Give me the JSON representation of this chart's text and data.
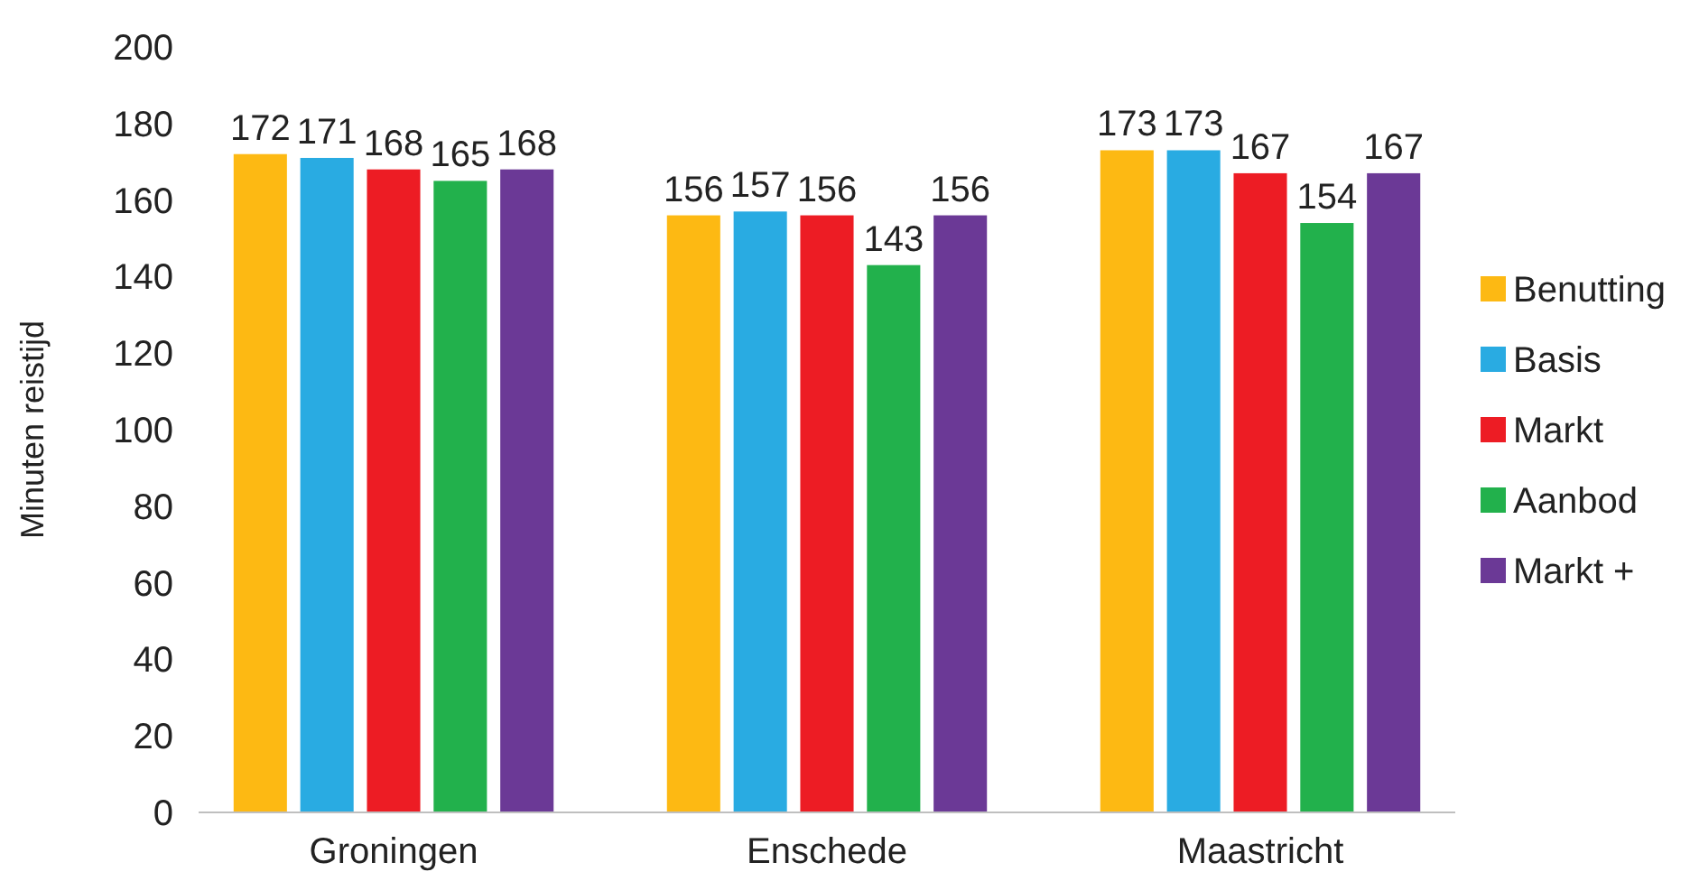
{
  "chart_data": {
    "type": "bar",
    "ylabel": "Minuten reistijd",
    "categories": [
      "Groningen",
      "Enschede",
      "Maastricht"
    ],
    "series": [
      {
        "name": "Benutting",
        "color": "#fdb913",
        "values": [
          172,
          156,
          173
        ]
      },
      {
        "name": "Basis",
        "color": "#29abe2",
        "values": [
          171,
          157,
          173
        ]
      },
      {
        "name": "Markt",
        "color": "#ed1c24",
        "values": [
          168,
          156,
          167
        ]
      },
      {
        "name": "Aanbod",
        "color": "#22b14c",
        "values": [
          165,
          143,
          154
        ]
      },
      {
        "name": "Markt +",
        "color": "#6b3996",
        "values": [
          168,
          156,
          167
        ]
      }
    ],
    "ylim": [
      0,
      200
    ],
    "yticks": [
      0,
      20,
      40,
      60,
      80,
      100,
      120,
      140,
      160,
      180,
      200
    ],
    "data_labels": true,
    "legend": "right",
    "grid": false
  }
}
